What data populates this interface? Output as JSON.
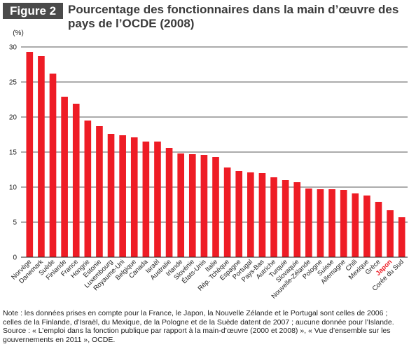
{
  "figure": {
    "label": "Figure 2",
    "title": "Pourcentage des fonctionnaires dans la main d’œuvre des pays de l’OCDE (2008)"
  },
  "chart_data": {
    "type": "bar",
    "title": "Pourcentage des fonctionnaires dans la main d’œuvre des pays de l’OCDE (2008)",
    "ylabel": "(%)",
    "xlabel": "",
    "ylim": [
      0,
      30
    ],
    "yticks": [
      0,
      5,
      10,
      15,
      20,
      25,
      30
    ],
    "grid": true,
    "bar_color": "#ee1c25",
    "highlight_label_color": "#ee1c25",
    "highlight_category": "Japon",
    "categories": [
      "Norvège",
      "Danemark",
      "Suède",
      "Finlande",
      "France",
      "Hongrie",
      "Estonie",
      "Luxembourg",
      "Royaume-Uni",
      "Belgique",
      "Canada",
      "Israël",
      "Australie",
      "Irlande",
      "Slovénie",
      "États-Unis",
      "Italie",
      "Rép. Tchèque",
      "Espagne",
      "Portugal",
      "Pays-Bas",
      "Autriche",
      "Turquie",
      "Slovaquie",
      "Nouvelle-Zélande",
      "Pologne",
      "Suisse",
      "Allemagne",
      "Chili",
      "Mexique",
      "Grèce",
      "Japon",
      "Corée du Sud"
    ],
    "values": [
      29.3,
      28.7,
      26.2,
      22.9,
      21.9,
      19.5,
      18.7,
      17.6,
      17.4,
      17.1,
      16.5,
      16.5,
      15.6,
      14.8,
      14.7,
      14.6,
      14.3,
      12.8,
      12.3,
      12.1,
      12.0,
      11.4,
      11.0,
      10.7,
      9.8,
      9.7,
      9.7,
      9.6,
      9.1,
      8.8,
      7.9,
      6.7,
      5.7
    ]
  },
  "notes": {
    "note": "Note : les données prises en compte pour la France, le Japon, la Nouvelle Zélande et le Portugal sont celles de 2006 ; celles de la Finlande, d’Israël, du Mexique, de la Pologne et de la Suède datent de 2007 ; aucune donnée pour l’Islande.",
    "source": "Source : « L’emploi dans la fonction publique par rapport à la main-d’œuvre (2000 et 2008) », « Vue d’ensemble sur les gouvernements en 2011 », OCDE."
  }
}
